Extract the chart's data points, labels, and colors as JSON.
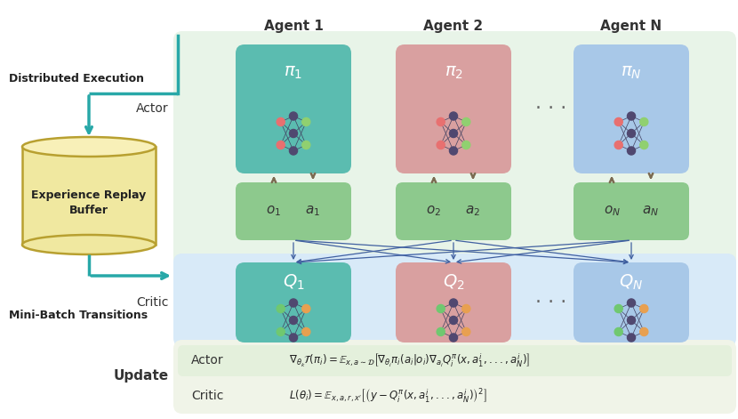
{
  "bg_color": "#ffffff",
  "fig_width": 8.3,
  "fig_height": 4.71,
  "actor_box_color_1": "#5bbcb0",
  "actor_box_color_2": "#d9a0a0",
  "actor_box_color_3": "#a8c8e8",
  "obs_action_box_color": "#8dc98d",
  "critic_box_color_1": "#5bbcb0",
  "critic_box_color_2": "#d9a0a0",
  "critic_box_color_3": "#a8c8e8",
  "buffer_fill": "#f0e8a0",
  "buffer_edge": "#b8a030",
  "arrow_color": "#7a6a50",
  "cross_arrow_color": "#4060a0",
  "teal_color": "#28a8a8",
  "top_section_bg": "#e8f4e8",
  "critic_section_bg": "#d8eaf8",
  "update_section_bg": "#f0f4e8",
  "update_actor_row_bg": "#e4f0dc",
  "agent_labels": [
    "Agent 1",
    "Agent 2",
    "Agent N"
  ],
  "actor_text": "Actor",
  "critic_text": "Critic",
  "update_text": "Update",
  "buffer_text": "Experience Replay\nBuffer",
  "dist_exec_text": "Distributed Execution",
  "mini_batch_text": "Mini-Batch Transitions",
  "actor_formula": "$\\nabla_{\\theta_k}\\mathcal{T}(\\pi_i) = \\mathbb{E}_{x,a\\sim\\mathcal{D}}\\left[\\nabla_{\\theta_i}\\pi_i(a_i|o_i)\\nabla_{a_i}Q_i^{\\pi}(x, a_1^i, ..., a_N^i)\\right]$",
  "critic_formula": "$L(\\theta_i) = \\mathbb{E}_{x,a,r,x'}\\left[\\left(y - Q_i^{\\pi}(x, a_1^i, ..., a_N^i)\\right)^2\\right]$",
  "nn_top_color_actor": "#90d070",
  "nn_mid_color_actor": "#504870",
  "nn_bot_color_actor": "#e87070",
  "nn_top_color_critic": "#e8a050",
  "nn_mid_color_critic": "#504870",
  "nn_bot_color_critic": "#70c870"
}
